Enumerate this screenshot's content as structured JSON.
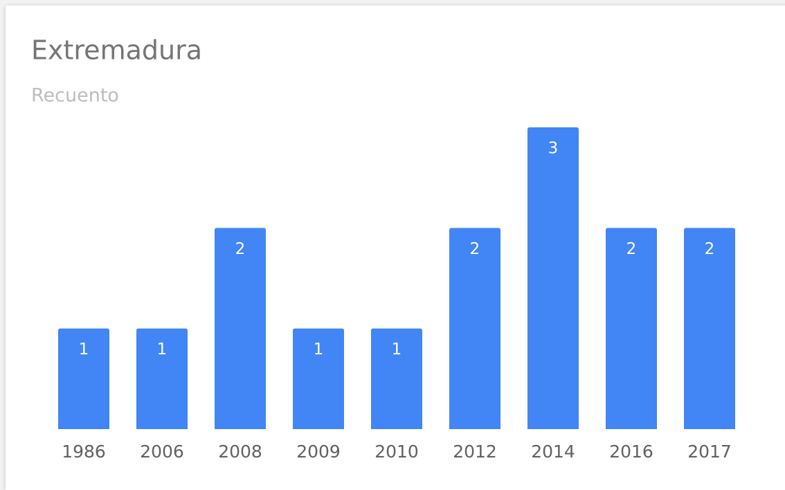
{
  "chart_data": {
    "type": "bar",
    "title": "Extremadura",
    "subtitle": "Recuento",
    "categories": [
      "1986",
      "2006",
      "2008",
      "2009",
      "2010",
      "2012",
      "2014",
      "2016",
      "2017"
    ],
    "values": [
      1,
      1,
      2,
      1,
      1,
      2,
      3,
      2,
      2
    ],
    "color": "#4285f4"
  }
}
